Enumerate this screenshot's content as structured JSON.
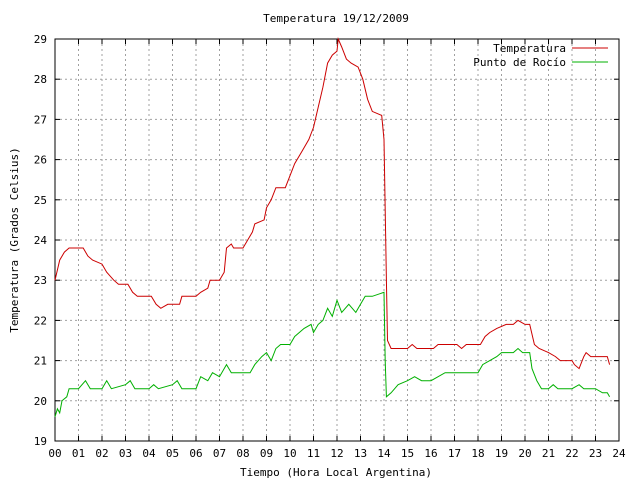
{
  "chart_data": {
    "type": "line",
    "title": "Temperatura 19/12/2009",
    "xlabel": "Tiempo (Hora Local Argentina)",
    "ylabel": "Temperatura (Grados Celsius)",
    "xlim": [
      0,
      24
    ],
    "ylim": [
      19,
      29
    ],
    "x_ticks": [
      "00",
      "01",
      "02",
      "03",
      "04",
      "05",
      "06",
      "07",
      "08",
      "09",
      "10",
      "11",
      "12",
      "13",
      "14",
      "15",
      "16",
      "17",
      "18",
      "19",
      "20",
      "21",
      "22",
      "23",
      "24"
    ],
    "y_ticks": [
      19,
      20,
      21,
      22,
      23,
      24,
      25,
      26,
      27,
      28,
      29
    ],
    "grid": true,
    "legend_position": "top-right",
    "colors": {
      "series_1": "#cc0000",
      "series_2": "#00b000",
      "grid": "#a0a0a0"
    },
    "series": [
      {
        "name": "Temperatura",
        "points": [
          [
            0.0,
            23.0
          ],
          [
            0.2,
            23.5
          ],
          [
            0.4,
            23.7
          ],
          [
            0.6,
            23.8
          ],
          [
            1.2,
            23.8
          ],
          [
            1.4,
            23.6
          ],
          [
            1.6,
            23.5
          ],
          [
            2.0,
            23.4
          ],
          [
            2.2,
            23.2
          ],
          [
            2.5,
            23.0
          ],
          [
            2.7,
            22.9
          ],
          [
            3.1,
            22.9
          ],
          [
            3.3,
            22.7
          ],
          [
            3.5,
            22.6
          ],
          [
            4.1,
            22.6
          ],
          [
            4.3,
            22.4
          ],
          [
            4.5,
            22.3
          ],
          [
            4.8,
            22.4
          ],
          [
            5.3,
            22.4
          ],
          [
            5.4,
            22.6
          ],
          [
            6.0,
            22.6
          ],
          [
            6.2,
            22.7
          ],
          [
            6.5,
            22.8
          ],
          [
            6.6,
            23.0
          ],
          [
            7.0,
            23.0
          ],
          [
            7.2,
            23.2
          ],
          [
            7.3,
            23.8
          ],
          [
            7.5,
            23.9
          ],
          [
            7.6,
            23.8
          ],
          [
            8.0,
            23.8
          ],
          [
            8.2,
            24.0
          ],
          [
            8.4,
            24.2
          ],
          [
            8.5,
            24.4
          ],
          [
            8.9,
            24.5
          ],
          [
            9.0,
            24.8
          ],
          [
            9.2,
            25.0
          ],
          [
            9.4,
            25.3
          ],
          [
            9.8,
            25.3
          ],
          [
            10.0,
            25.6
          ],
          [
            10.2,
            25.9
          ],
          [
            10.5,
            26.2
          ],
          [
            10.8,
            26.5
          ],
          [
            11.0,
            26.8
          ],
          [
            11.2,
            27.3
          ],
          [
            11.4,
            27.8
          ],
          [
            11.6,
            28.4
          ],
          [
            11.8,
            28.6
          ],
          [
            12.0,
            28.7
          ],
          [
            12.05,
            29.0
          ],
          [
            12.2,
            28.8
          ],
          [
            12.4,
            28.5
          ],
          [
            12.6,
            28.4
          ],
          [
            12.9,
            28.3
          ],
          [
            13.1,
            28.0
          ],
          [
            13.3,
            27.5
          ],
          [
            13.5,
            27.2
          ],
          [
            13.9,
            27.1
          ],
          [
            14.0,
            26.5
          ],
          [
            14.1,
            23.0
          ],
          [
            14.15,
            21.5
          ],
          [
            14.3,
            21.3
          ],
          [
            15.0,
            21.3
          ],
          [
            15.2,
            21.4
          ],
          [
            15.4,
            21.3
          ],
          [
            16.1,
            21.3
          ],
          [
            16.3,
            21.4
          ],
          [
            16.7,
            21.4
          ],
          [
            17.1,
            21.4
          ],
          [
            17.3,
            21.3
          ],
          [
            17.5,
            21.4
          ],
          [
            18.1,
            21.4
          ],
          [
            18.3,
            21.6
          ],
          [
            18.5,
            21.7
          ],
          [
            18.8,
            21.8
          ],
          [
            19.2,
            21.9
          ],
          [
            19.5,
            21.9
          ],
          [
            19.7,
            22.0
          ],
          [
            20.0,
            21.9
          ],
          [
            20.2,
            21.9
          ],
          [
            20.4,
            21.4
          ],
          [
            20.6,
            21.3
          ],
          [
            21.0,
            21.2
          ],
          [
            21.3,
            21.1
          ],
          [
            21.5,
            21.0
          ],
          [
            22.0,
            21.0
          ],
          [
            22.1,
            20.9
          ],
          [
            22.3,
            20.8
          ],
          [
            22.5,
            21.1
          ],
          [
            22.6,
            21.2
          ],
          [
            22.8,
            21.1
          ],
          [
            23.5,
            21.1
          ],
          [
            23.6,
            20.9
          ]
        ]
      },
      {
        "name": "Punto de Rocío",
        "points": [
          [
            0.0,
            19.6
          ],
          [
            0.1,
            19.8
          ],
          [
            0.2,
            19.7
          ],
          [
            0.3,
            20.0
          ],
          [
            0.5,
            20.1
          ],
          [
            0.6,
            20.3
          ],
          [
            1.0,
            20.3
          ],
          [
            1.3,
            20.5
          ],
          [
            1.5,
            20.3
          ],
          [
            2.0,
            20.3
          ],
          [
            2.2,
            20.5
          ],
          [
            2.4,
            20.3
          ],
          [
            3.0,
            20.4
          ],
          [
            3.2,
            20.5
          ],
          [
            3.4,
            20.3
          ],
          [
            4.0,
            20.3
          ],
          [
            4.2,
            20.4
          ],
          [
            4.4,
            20.3
          ],
          [
            5.0,
            20.4
          ],
          [
            5.2,
            20.5
          ],
          [
            5.4,
            20.3
          ],
          [
            6.0,
            20.3
          ],
          [
            6.2,
            20.6
          ],
          [
            6.5,
            20.5
          ],
          [
            6.7,
            20.7
          ],
          [
            7.0,
            20.6
          ],
          [
            7.3,
            20.9
          ],
          [
            7.5,
            20.7
          ],
          [
            8.0,
            20.7
          ],
          [
            8.3,
            20.7
          ],
          [
            8.5,
            20.9
          ],
          [
            8.8,
            21.1
          ],
          [
            9.0,
            21.2
          ],
          [
            9.2,
            21.0
          ],
          [
            9.4,
            21.3
          ],
          [
            9.6,
            21.4
          ],
          [
            10.0,
            21.4
          ],
          [
            10.2,
            21.6
          ],
          [
            10.6,
            21.8
          ],
          [
            10.9,
            21.9
          ],
          [
            11.0,
            21.7
          ],
          [
            11.2,
            21.9
          ],
          [
            11.4,
            22.0
          ],
          [
            11.6,
            22.3
          ],
          [
            11.8,
            22.1
          ],
          [
            12.0,
            22.5
          ],
          [
            12.2,
            22.2
          ],
          [
            12.5,
            22.4
          ],
          [
            12.8,
            22.2
          ],
          [
            13.0,
            22.4
          ],
          [
            13.2,
            22.6
          ],
          [
            13.5,
            22.6
          ],
          [
            14.0,
            22.7
          ],
          [
            14.05,
            21.0
          ],
          [
            14.1,
            20.1
          ],
          [
            14.3,
            20.2
          ],
          [
            14.6,
            20.4
          ],
          [
            15.0,
            20.5
          ],
          [
            15.3,
            20.6
          ],
          [
            15.6,
            20.5
          ],
          [
            16.0,
            20.5
          ],
          [
            16.3,
            20.6
          ],
          [
            16.6,
            20.7
          ],
          [
            17.0,
            20.7
          ],
          [
            17.5,
            20.7
          ],
          [
            18.0,
            20.7
          ],
          [
            18.2,
            20.9
          ],
          [
            18.5,
            21.0
          ],
          [
            18.8,
            21.1
          ],
          [
            19.0,
            21.2
          ],
          [
            19.5,
            21.2
          ],
          [
            19.7,
            21.3
          ],
          [
            19.9,
            21.2
          ],
          [
            20.2,
            21.2
          ],
          [
            20.3,
            20.8
          ],
          [
            20.5,
            20.5
          ],
          [
            20.7,
            20.3
          ],
          [
            21.0,
            20.3
          ],
          [
            21.2,
            20.4
          ],
          [
            21.4,
            20.3
          ],
          [
            22.0,
            20.3
          ],
          [
            22.3,
            20.4
          ],
          [
            22.5,
            20.3
          ],
          [
            22.8,
            20.3
          ],
          [
            23.0,
            20.3
          ],
          [
            23.3,
            20.2
          ],
          [
            23.5,
            20.2
          ],
          [
            23.6,
            20.1
          ]
        ]
      }
    ]
  }
}
